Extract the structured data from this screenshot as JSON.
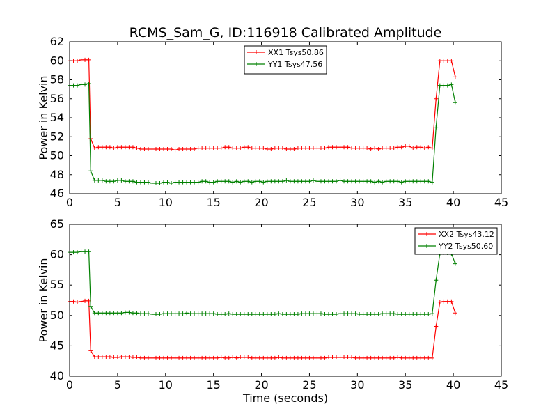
{
  "title": "RCMS_Sam_G, ID:116918 Calibrated Amplitude",
  "xlabel": "Time (seconds)",
  "chart_data": [
    {
      "type": "line",
      "title": "RCMS_Sam_G, ID:116918 Calibrated Amplitude",
      "xlabel": "",
      "ylabel": "Power in Kelvin",
      "xlim": [
        0,
        45
      ],
      "ylim": [
        46,
        62
      ],
      "xticks": [
        0,
        5,
        10,
        15,
        20,
        25,
        30,
        35,
        40,
        45
      ],
      "yticks": [
        46,
        48,
        50,
        52,
        54,
        56,
        58,
        60,
        62
      ],
      "legend_position": "upper-center",
      "series": [
        {
          "name": "XX1 Tsys50.86",
          "color": "#ff0000",
          "marker": "+",
          "x": [
            0.0,
            0.4,
            0.8,
            1.2,
            1.6,
            2.0,
            2.2,
            2.6,
            3.0,
            3.4,
            3.8,
            4.2,
            4.6,
            5.0,
            5.4,
            5.8,
            6.2,
            6.6,
            7.0,
            7.4,
            7.8,
            8.2,
            8.6,
            9.0,
            9.4,
            9.8,
            10.2,
            10.6,
            11.0,
            11.4,
            11.8,
            12.2,
            12.6,
            13.0,
            13.4,
            13.8,
            14.2,
            14.6,
            15.0,
            15.4,
            15.8,
            16.2,
            16.6,
            17.0,
            17.4,
            17.8,
            18.2,
            18.6,
            19.0,
            19.4,
            19.8,
            20.2,
            20.6,
            21.0,
            21.4,
            21.8,
            22.2,
            22.6,
            23.0,
            23.4,
            23.8,
            24.2,
            24.6,
            25.0,
            25.4,
            25.8,
            26.2,
            26.6,
            27.0,
            27.4,
            27.8,
            28.2,
            28.6,
            29.0,
            29.4,
            29.8,
            30.2,
            30.6,
            31.0,
            31.4,
            31.8,
            32.2,
            32.6,
            33.0,
            33.4,
            33.8,
            34.2,
            34.6,
            35.0,
            35.4,
            35.8,
            36.2,
            36.6,
            37.0,
            37.4,
            37.8,
            38.2,
            38.6,
            39.0,
            39.4,
            39.8,
            40.2
          ],
          "y": [
            60.0,
            60.0,
            60.0,
            60.1,
            60.1,
            60.1,
            51.8,
            50.8,
            50.9,
            50.9,
            50.9,
            50.9,
            50.8,
            50.9,
            50.9,
            50.9,
            50.9,
            50.9,
            50.8,
            50.7,
            50.7,
            50.7,
            50.7,
            50.7,
            50.7,
            50.7,
            50.7,
            50.7,
            50.6,
            50.7,
            50.7,
            50.7,
            50.7,
            50.7,
            50.8,
            50.8,
            50.8,
            50.8,
            50.8,
            50.8,
            50.8,
            50.9,
            50.9,
            50.8,
            50.8,
            50.8,
            50.9,
            50.9,
            50.8,
            50.8,
            50.8,
            50.8,
            50.7,
            50.7,
            50.8,
            50.8,
            50.8,
            50.7,
            50.7,
            50.7,
            50.8,
            50.8,
            50.8,
            50.8,
            50.8,
            50.8,
            50.8,
            50.8,
            50.9,
            50.9,
            50.9,
            50.9,
            50.9,
            50.9,
            50.8,
            50.8,
            50.8,
            50.8,
            50.8,
            50.7,
            50.8,
            50.7,
            50.8,
            50.8,
            50.8,
            50.8,
            50.9,
            50.9,
            51.0,
            51.0,
            50.8,
            50.9,
            50.9,
            50.8,
            50.9,
            50.8,
            56.0,
            60.0,
            60.0,
            60.0,
            60.0,
            58.3
          ]
        },
        {
          "name": "YY1 Tsys47.56",
          "color": "#008000",
          "marker": "+",
          "x": [
            0.0,
            0.4,
            0.8,
            1.2,
            1.6,
            2.0,
            2.2,
            2.6,
            3.0,
            3.4,
            3.8,
            4.2,
            4.6,
            5.0,
            5.4,
            5.8,
            6.2,
            6.6,
            7.0,
            7.4,
            7.8,
            8.2,
            8.6,
            9.0,
            9.4,
            9.8,
            10.2,
            10.6,
            11.0,
            11.4,
            11.8,
            12.2,
            12.6,
            13.0,
            13.4,
            13.8,
            14.2,
            14.6,
            15.0,
            15.4,
            15.8,
            16.2,
            16.6,
            17.0,
            17.4,
            17.8,
            18.2,
            18.6,
            19.0,
            19.4,
            19.8,
            20.2,
            20.6,
            21.0,
            21.4,
            21.8,
            22.2,
            22.6,
            23.0,
            23.4,
            23.8,
            24.2,
            24.6,
            25.0,
            25.4,
            25.8,
            26.2,
            26.6,
            27.0,
            27.4,
            27.8,
            28.2,
            28.6,
            29.0,
            29.4,
            29.8,
            30.2,
            30.6,
            31.0,
            31.4,
            31.8,
            32.2,
            32.6,
            33.0,
            33.4,
            33.8,
            34.2,
            34.6,
            35.0,
            35.4,
            35.8,
            36.2,
            36.6,
            37.0,
            37.4,
            37.8,
            38.2,
            38.6,
            39.0,
            39.4,
            39.8,
            40.2
          ],
          "y": [
            57.4,
            57.4,
            57.4,
            57.5,
            57.5,
            57.6,
            48.4,
            47.4,
            47.4,
            47.4,
            47.3,
            47.3,
            47.3,
            47.4,
            47.4,
            47.3,
            47.3,
            47.3,
            47.2,
            47.2,
            47.2,
            47.2,
            47.1,
            47.1,
            47.1,
            47.2,
            47.2,
            47.1,
            47.2,
            47.2,
            47.2,
            47.2,
            47.2,
            47.2,
            47.2,
            47.3,
            47.3,
            47.2,
            47.2,
            47.3,
            47.3,
            47.3,
            47.3,
            47.2,
            47.3,
            47.2,
            47.3,
            47.3,
            47.2,
            47.3,
            47.3,
            47.2,
            47.3,
            47.3,
            47.3,
            47.3,
            47.3,
            47.4,
            47.3,
            47.3,
            47.3,
            47.3,
            47.3,
            47.3,
            47.4,
            47.3,
            47.3,
            47.3,
            47.3,
            47.3,
            47.3,
            47.4,
            47.3,
            47.3,
            47.3,
            47.3,
            47.3,
            47.3,
            47.3,
            47.3,
            47.2,
            47.3,
            47.2,
            47.3,
            47.3,
            47.3,
            47.3,
            47.2,
            47.3,
            47.3,
            47.3,
            47.3,
            47.3,
            47.3,
            47.3,
            47.2,
            53.0,
            57.4,
            57.4,
            57.4,
            57.5,
            55.6
          ]
        }
      ]
    },
    {
      "type": "line",
      "title": "",
      "xlabel": "Time (seconds)",
      "ylabel": "Power in Kelvin",
      "xlim": [
        0,
        45
      ],
      "ylim": [
        40,
        65
      ],
      "xticks": [
        0,
        5,
        10,
        15,
        20,
        25,
        30,
        35,
        40,
        45
      ],
      "yticks": [
        40,
        45,
        50,
        55,
        60,
        65
      ],
      "legend_position": "upper-right",
      "series": [
        {
          "name": "XX2 Tsys43.12",
          "color": "#ff0000",
          "marker": "+",
          "x": [
            0.0,
            0.4,
            0.8,
            1.2,
            1.6,
            2.0,
            2.2,
            2.6,
            3.0,
            3.4,
            3.8,
            4.2,
            4.6,
            5.0,
            5.4,
            5.8,
            6.2,
            6.6,
            7.0,
            7.4,
            7.8,
            8.2,
            8.6,
            9.0,
            9.4,
            9.8,
            10.2,
            10.6,
            11.0,
            11.4,
            11.8,
            12.2,
            12.6,
            13.0,
            13.4,
            13.8,
            14.2,
            14.6,
            15.0,
            15.4,
            15.8,
            16.2,
            16.6,
            17.0,
            17.4,
            17.8,
            18.2,
            18.6,
            19.0,
            19.4,
            19.8,
            20.2,
            20.6,
            21.0,
            21.4,
            21.8,
            22.2,
            22.6,
            23.0,
            23.4,
            23.8,
            24.2,
            24.6,
            25.0,
            25.4,
            25.8,
            26.2,
            26.6,
            27.0,
            27.4,
            27.8,
            28.2,
            28.6,
            29.0,
            29.4,
            29.8,
            30.2,
            30.6,
            31.0,
            31.4,
            31.8,
            32.2,
            32.6,
            33.0,
            33.4,
            33.8,
            34.2,
            34.6,
            35.0,
            35.4,
            35.8,
            36.2,
            36.6,
            37.0,
            37.4,
            37.8,
            38.2,
            38.6,
            39.0,
            39.4,
            39.8,
            40.2
          ],
          "y": [
            52.3,
            52.3,
            52.2,
            52.3,
            52.4,
            52.4,
            44.2,
            43.2,
            43.2,
            43.2,
            43.2,
            43.2,
            43.1,
            43.1,
            43.2,
            43.2,
            43.2,
            43.1,
            43.1,
            43.0,
            43.0,
            43.0,
            43.0,
            43.0,
            43.0,
            43.0,
            43.0,
            43.0,
            43.0,
            43.0,
            43.0,
            43.0,
            43.0,
            43.0,
            43.0,
            43.0,
            43.0,
            43.0,
            43.0,
            43.0,
            43.1,
            43.0,
            43.0,
            43.1,
            43.0,
            43.1,
            43.1,
            43.1,
            43.0,
            43.0,
            43.0,
            43.0,
            43.0,
            43.0,
            43.0,
            43.1,
            43.0,
            43.0,
            43.0,
            43.0,
            43.0,
            43.0,
            43.0,
            43.0,
            43.0,
            43.0,
            43.0,
            43.0,
            43.1,
            43.1,
            43.1,
            43.1,
            43.1,
            43.1,
            43.1,
            43.0,
            43.0,
            43.0,
            43.0,
            43.0,
            43.0,
            43.0,
            43.0,
            43.0,
            43.0,
            43.0,
            43.1,
            43.0,
            43.0,
            43.0,
            43.0,
            43.0,
            43.0,
            43.0,
            43.0,
            43.0,
            48.2,
            52.2,
            52.3,
            52.3,
            52.3,
            50.4
          ]
        },
        {
          "name": "YY2 Tsys50.60",
          "color": "#008000",
          "marker": "+",
          "x": [
            0.0,
            0.4,
            0.8,
            1.2,
            1.6,
            2.0,
            2.2,
            2.6,
            3.0,
            3.4,
            3.8,
            4.2,
            4.6,
            5.0,
            5.4,
            5.8,
            6.2,
            6.6,
            7.0,
            7.4,
            7.8,
            8.2,
            8.6,
            9.0,
            9.4,
            9.8,
            10.2,
            10.6,
            11.0,
            11.4,
            11.8,
            12.2,
            12.6,
            13.0,
            13.4,
            13.8,
            14.2,
            14.6,
            15.0,
            15.4,
            15.8,
            16.2,
            16.6,
            17.0,
            17.4,
            17.8,
            18.2,
            18.6,
            19.0,
            19.4,
            19.8,
            20.2,
            20.6,
            21.0,
            21.4,
            21.8,
            22.2,
            22.6,
            23.0,
            23.4,
            23.8,
            24.2,
            24.6,
            25.0,
            25.4,
            25.8,
            26.2,
            26.6,
            27.0,
            27.4,
            27.8,
            28.2,
            28.6,
            29.0,
            29.4,
            29.8,
            30.2,
            30.6,
            31.0,
            31.4,
            31.8,
            32.2,
            32.6,
            33.0,
            33.4,
            33.8,
            34.2,
            34.6,
            35.0,
            35.4,
            35.8,
            36.2,
            36.6,
            37.0,
            37.4,
            37.8,
            38.2,
            38.6,
            39.0,
            39.4,
            39.8,
            40.2
          ],
          "y": [
            60.4,
            60.4,
            60.4,
            60.5,
            60.5,
            60.5,
            51.5,
            50.4,
            50.4,
            50.4,
            50.4,
            50.4,
            50.4,
            50.4,
            50.4,
            50.5,
            50.5,
            50.4,
            50.4,
            50.3,
            50.3,
            50.3,
            50.2,
            50.2,
            50.2,
            50.3,
            50.3,
            50.3,
            50.3,
            50.3,
            50.3,
            50.4,
            50.3,
            50.3,
            50.3,
            50.3,
            50.3,
            50.3,
            50.3,
            50.2,
            50.2,
            50.2,
            50.3,
            50.2,
            50.2,
            50.2,
            50.2,
            50.2,
            50.2,
            50.2,
            50.2,
            50.2,
            50.2,
            50.2,
            50.2,
            50.3,
            50.2,
            50.2,
            50.2,
            50.2,
            50.2,
            50.3,
            50.3,
            50.3,
            50.3,
            50.3,
            50.3,
            50.2,
            50.2,
            50.2,
            50.2,
            50.3,
            50.3,
            50.3,
            50.3,
            50.3,
            50.2,
            50.2,
            50.2,
            50.2,
            50.2,
            50.2,
            50.3,
            50.3,
            50.3,
            50.3,
            50.2,
            50.2,
            50.2,
            50.2,
            50.2,
            50.2,
            50.2,
            50.2,
            50.2,
            50.3,
            55.8,
            60.2,
            60.3,
            60.3,
            60.2,
            58.5
          ]
        }
      ]
    }
  ]
}
